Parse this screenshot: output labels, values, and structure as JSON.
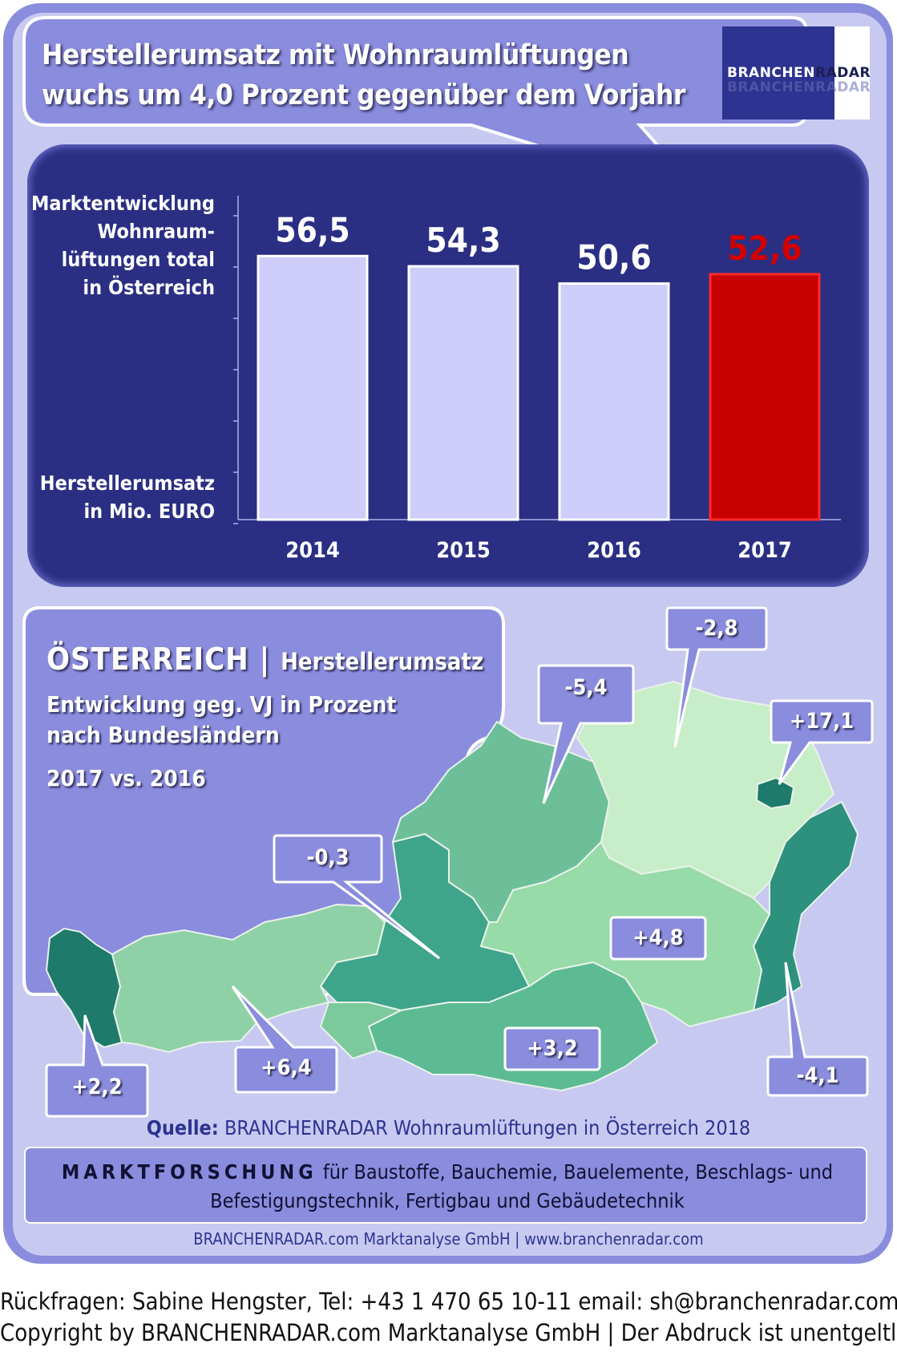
{
  "headline": {
    "line1": "Herstellerumsatz mit  Wohnraumlüftungen",
    "line2": "wuchs um 4,0 Prozent gegenüber dem Vorjahr"
  },
  "logo": {
    "part1": "BRANCHEN",
    "part2": "RADAR",
    "ghost": "BRANCHENRADAR"
  },
  "chart_labels": {
    "top": [
      "Marktentwicklung",
      "Wohnraum-",
      "lüftungen total",
      "in Österreich"
    ],
    "bottom": [
      "Herstellerumsatz",
      "in Mio. EURO"
    ]
  },
  "chart_data": {
    "type": "bar",
    "categories": [
      "2014",
      "2015",
      "2016",
      "2017"
    ],
    "values": [
      56.5,
      54.3,
      50.6,
      52.6
    ],
    "value_labels": [
      "56,5",
      "54,3",
      "50,6",
      "52,6"
    ],
    "highlight_index": 3,
    "ylabel": "Herstellerumsatz in Mio. EURO",
    "ylim": [
      0,
      66
    ],
    "colors": {
      "bar": "#cfcdf9",
      "highlight": "#c80000",
      "highlight_label": "#d40000"
    }
  },
  "map": {
    "title_big": "ÖSTERREICH",
    "title_sep": " | ",
    "title_small": "Herstellerumsatz",
    "sub1": "Entwicklung  geg. VJ in Prozent",
    "sub2": "nach Bundesländern",
    "sub3": "2017 vs. 2016",
    "regions": [
      {
        "label": "+2,2"
      },
      {
        "label": "+6,4"
      },
      {
        "label": "-0,3"
      },
      {
        "label": "-5,4"
      },
      {
        "label": "-2,8"
      },
      {
        "label": "+17,1"
      },
      {
        "label": "+4,8"
      },
      {
        "label": "+3,2"
      },
      {
        "label": "-4,1"
      }
    ]
  },
  "source": {
    "label": "Quelle:",
    "text": " BRANCHENRADAR Wohnraumlüftungen in Österreich 2018"
  },
  "marktforschung": {
    "caps": "MARKTFORSCHUNG",
    "line1_rest": " für Baustoffe, Bauchemie, Bauelemente, Beschlags- und",
    "line2": "Befestigungstechnik, Fertigbau und Gebäudetechnik"
  },
  "company": "BRANCHENRADAR.com Marktanalyse GmbH | www.branchenradar.com",
  "contact": {
    "line1": "Rückfragen: Sabine Hengster, Tel: +43 1 470 65 10-11 email: sh@branchenradar.com",
    "line2": "Copyright by BRANCHENRADAR.com  Marktanalyse GmbH | Der Abdruck ist unentgeltlich."
  }
}
